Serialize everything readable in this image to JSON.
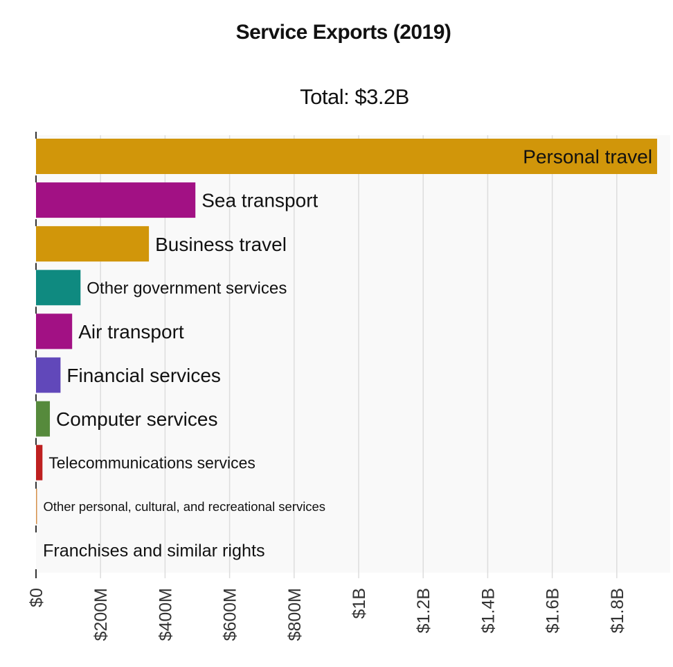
{
  "chart_data": {
    "type": "bar",
    "orientation": "horizontal",
    "title": "Service Exports (2019)",
    "subtitle": "Total: $3.2B",
    "xlabel": "",
    "ylabel": "",
    "xlim": [
      0,
      1930000000
    ],
    "grid": true,
    "legend": "none",
    "x_ticks": [
      {
        "value": 0,
        "label": "$0"
      },
      {
        "value": 200000000,
        "label": "$200M"
      },
      {
        "value": 400000000,
        "label": "$400M"
      },
      {
        "value": 600000000,
        "label": "$600M"
      },
      {
        "value": 800000000,
        "label": "$800M"
      },
      {
        "value": 1000000000,
        "label": "$1B"
      },
      {
        "value": 1200000000,
        "label": "$1.2B"
      },
      {
        "value": 1400000000,
        "label": "$1.4B"
      },
      {
        "value": 1600000000,
        "label": "$1.6B"
      },
      {
        "value": 1800000000,
        "label": "$1.8B"
      }
    ],
    "categories": [
      "Personal travel",
      "Sea transport",
      "Business travel",
      "Other government services",
      "Air transport",
      "Financial services",
      "Computer services",
      "Telecommunications services",
      "Other personal, cultural, and recreational services",
      "Franchises and similar rights"
    ],
    "values": [
      1925000000,
      494000000,
      350000000,
      138000000,
      112000000,
      76000000,
      43000000,
      20000000,
      3000000,
      0
    ],
    "colors": [
      "#d1960a",
      "#a21184",
      "#d1960a",
      "#0f8a80",
      "#a21184",
      "#6148ba",
      "#568a3c",
      "#be2020",
      "#d6904a",
      "#d6904a"
    ],
    "label_inside": [
      true,
      false,
      false,
      false,
      false,
      false,
      false,
      false,
      false,
      false
    ],
    "label_sizes_relative": [
      1.0,
      1.0,
      1.0,
      0.86,
      1.0,
      1.0,
      1.0,
      0.82,
      0.66,
      0.9
    ]
  }
}
